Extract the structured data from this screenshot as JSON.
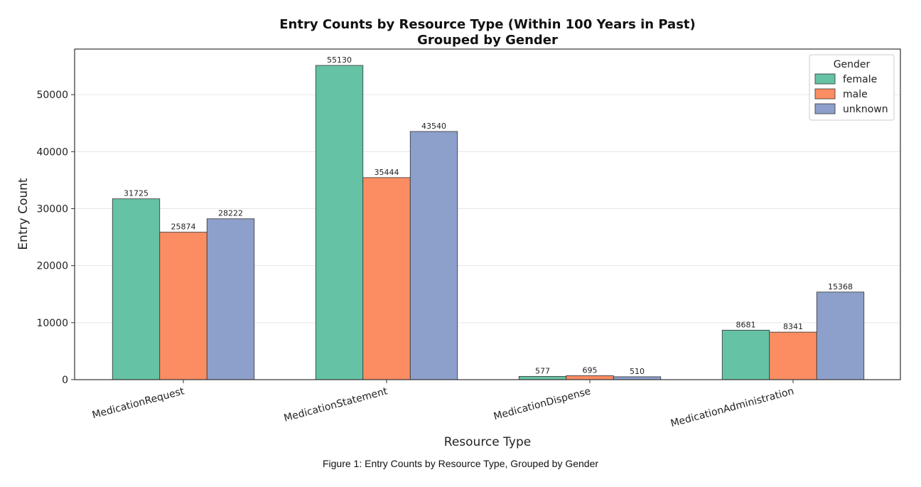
{
  "chart_data": {
    "type": "bar",
    "title_lines": [
      "Entry Counts by Resource Type (Within 100 Years in Past)",
      "Grouped by Gender"
    ],
    "xlabel": "Resource Type",
    "ylabel": "Entry Count",
    "categories": [
      "MedicationRequest",
      "MedicationStatement",
      "MedicationDispense",
      "MedicationAdministration"
    ],
    "series": [
      {
        "name": "female",
        "color": "#66c2a5",
        "values": [
          31725,
          55130,
          577,
          8681
        ]
      },
      {
        "name": "male",
        "color": "#fc8d62",
        "values": [
          25874,
          35444,
          695,
          8341
        ]
      },
      {
        "name": "unknown",
        "color": "#8da0cb",
        "values": [
          28222,
          43540,
          510,
          15368
        ]
      }
    ],
    "ylim": [
      0,
      58000
    ],
    "yticks": [
      0,
      10000,
      20000,
      30000,
      40000,
      50000
    ],
    "grid": "y",
    "legend": {
      "title": "Gender",
      "placement": "top-right"
    },
    "data_labels": true
  },
  "caption": "Figure 1: Entry Counts by Resource Type, Grouped by Gender"
}
